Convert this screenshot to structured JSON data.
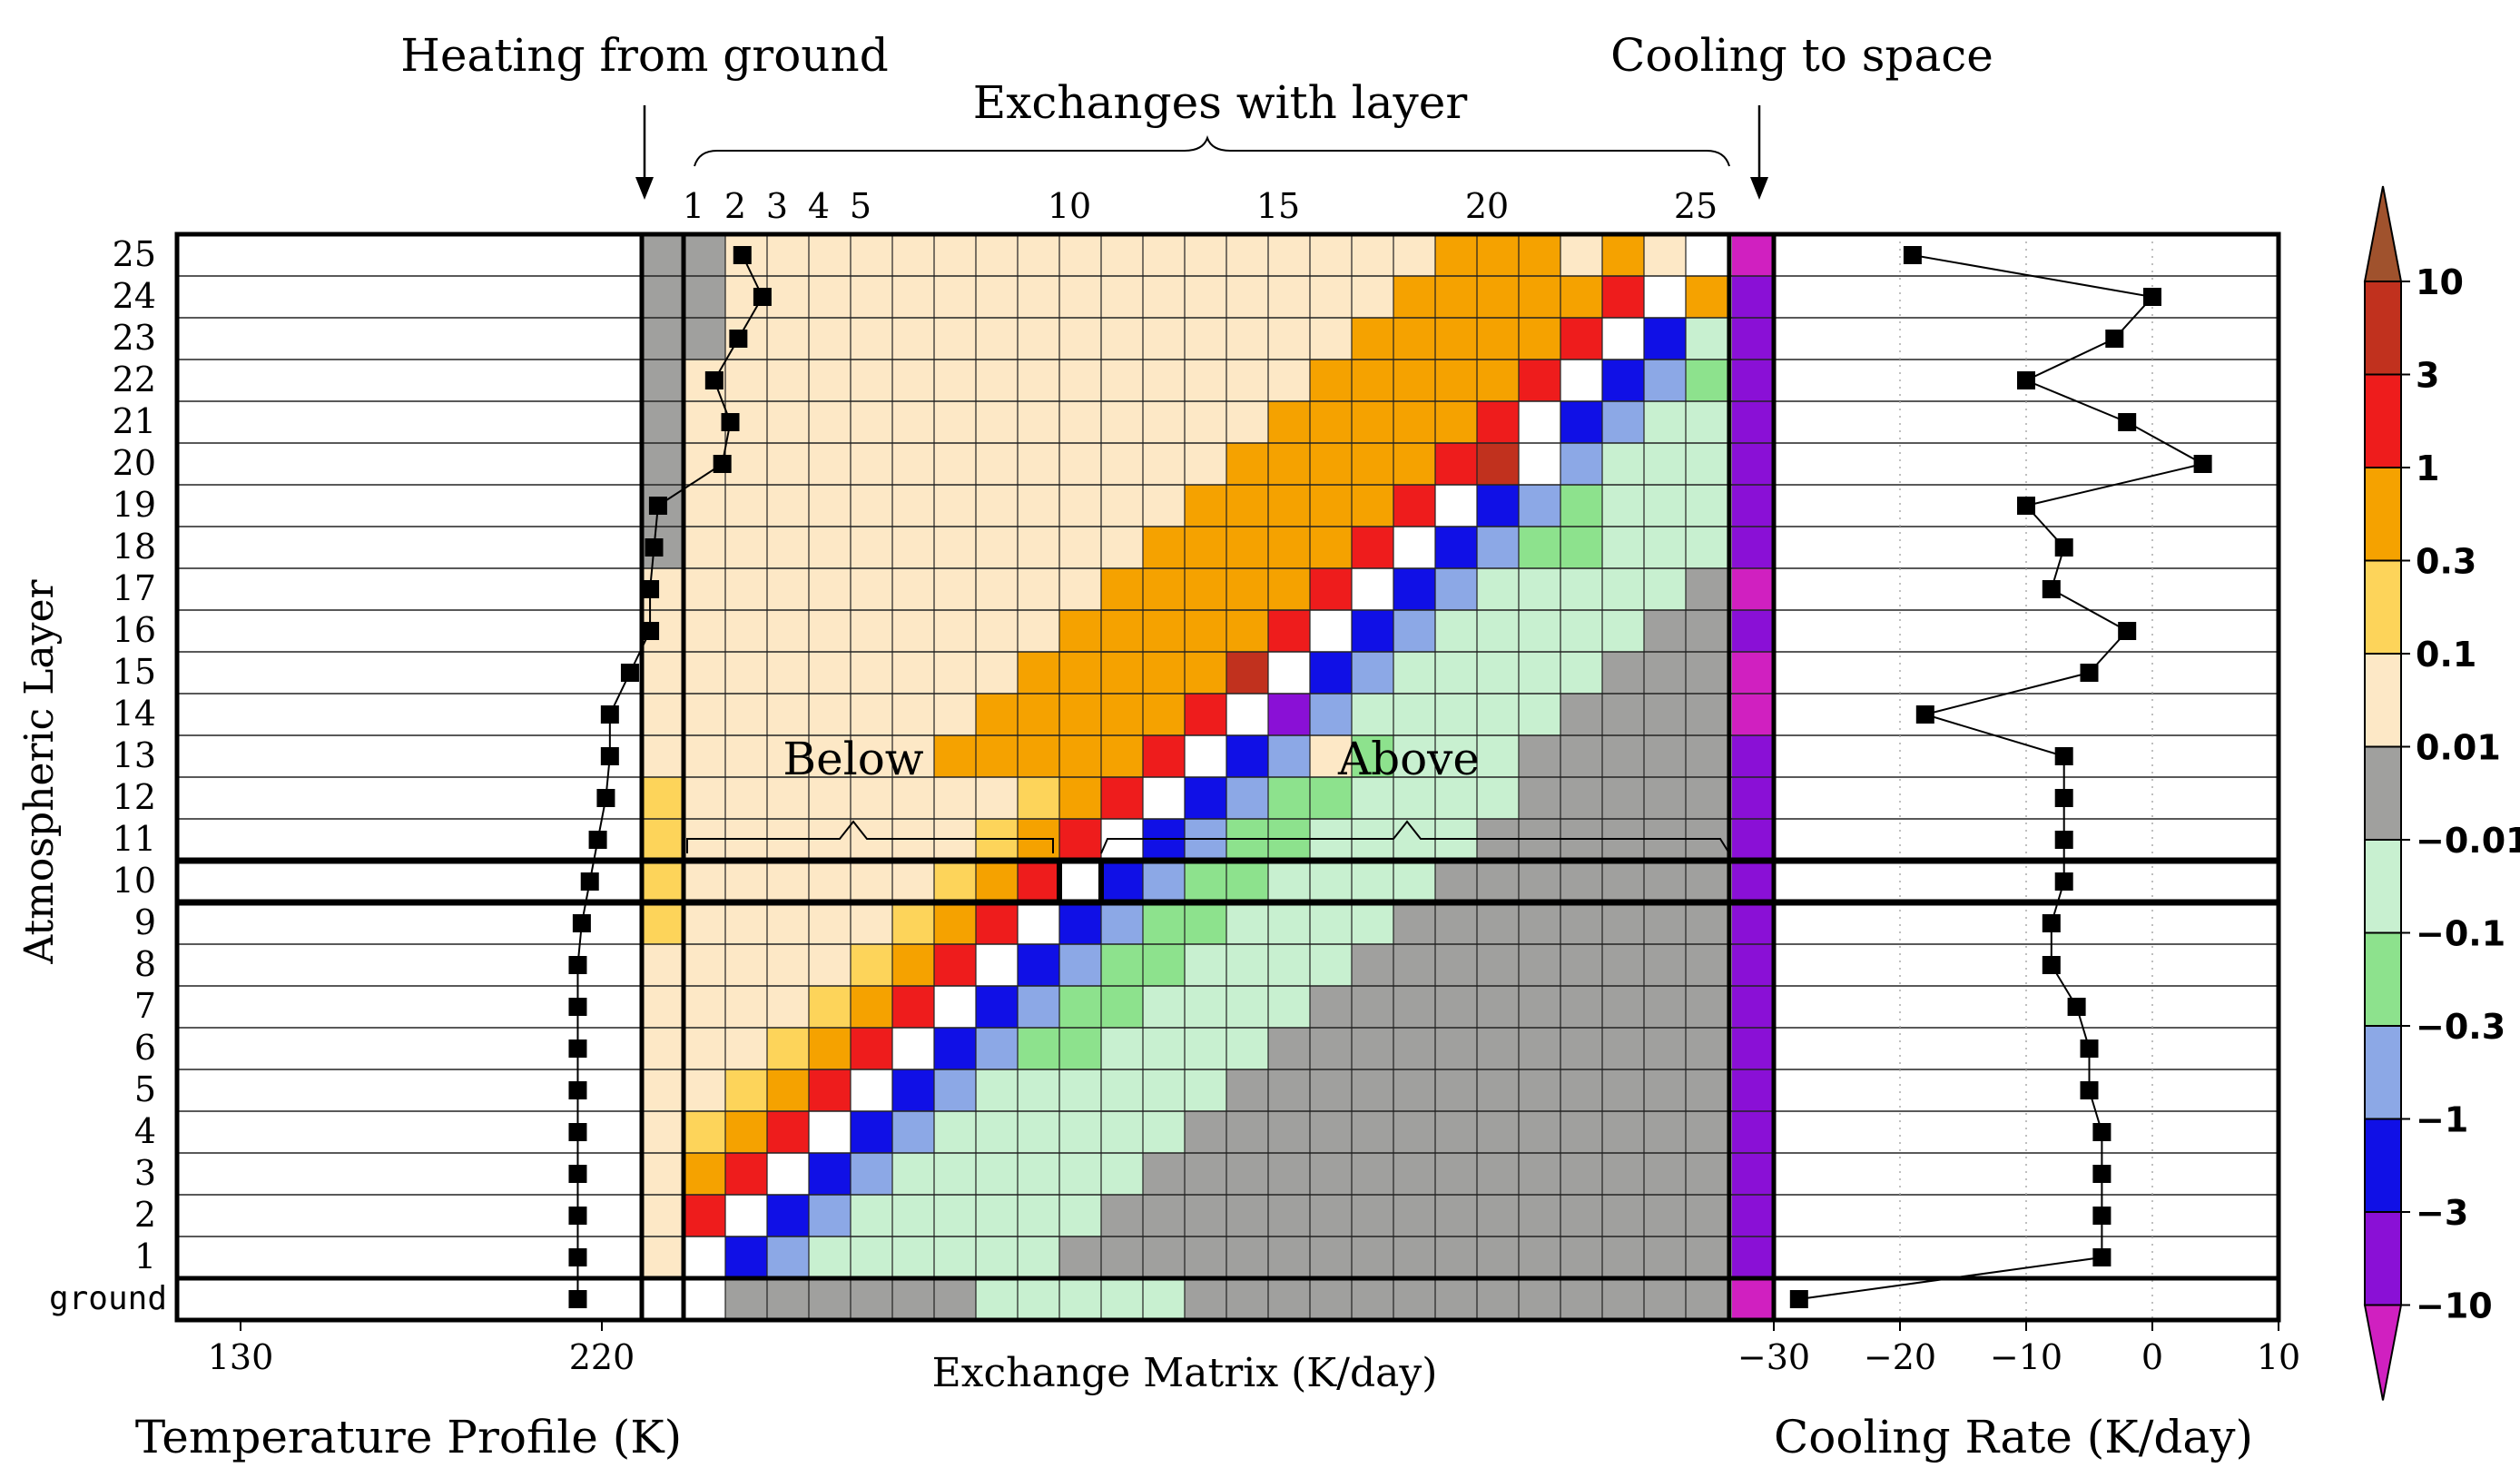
{
  "chart_data": {
    "type": "heatmap",
    "layers": [
      "1",
      "2",
      "3",
      "4",
      "5",
      "6",
      "7",
      "8",
      "9",
      "10",
      "11",
      "12",
      "13",
      "14",
      "15",
      "16",
      "17",
      "18",
      "19",
      "20",
      "21",
      "22",
      "23",
      "24",
      "25"
    ],
    "ground_label": "ground",
    "y_axis_label": "Atmospheric Layer",
    "annotations": {
      "heating_from_ground": "Heating from ground",
      "exchanges_with_layer": "Exchanges with layer",
      "cooling_to_space": "Cooling to space",
      "below": "Below",
      "above": "Above"
    },
    "exchange_matrix": {
      "xlabel": "Exchange Matrix (K/day)",
      "top_ticks": [
        "1",
        "2",
        "3",
        "4",
        "5",
        "10",
        "15",
        "20",
        "25"
      ],
      "top_tick_layers": [
        1,
        2,
        3,
        4,
        5,
        10,
        15,
        20,
        25
      ],
      "rows_from_layer_1_to_25": [
        "abbbbbbbbbbbccccdddddddddd",
        "abbbbbbbbbbbccccdddddddddd",
        "abbbbbbbbbbbccccdddddddddd",
        "abbbbbbbbbbbbcccdddddddddd",
        "abbbbbbbbbbbbbccdddddddddd",
        "abbbbbbbbbbbbbbbdddddddddd",
        "abbbbbbbbbbbbbbbbddddddddd",
        "abbbbbbbbbbbbbbbbbdddddddd",
        "abbbbbbbbbbbbbbbbbbddddddd",
        "abbbbbbbbbbbbbbbbbbbdddddd",
        "abbbbbbbbbbbbbbbbbbbbddddd",
        "abbbbbbbbbbbbbbbbbbbbbdddd",
        "abbbbbbbbbbbbbbbbbbbbbbddd",
        "abbbbbbbbbbbbbbbbbbbbbbbdd",
        "abbbbbbbbbbbbbbbbbbbbbbbbd",
        "abbbbbbbbbbbbbbbbbbbbbbbbb",
        "abbbbbbbbbbbbbbbbbbbbbbbbb",
        "abbbbbbbbbbbbbbbbbbbbbbbbb",
        "abbbbbbbbbbbbbbbbbbbbbbbbb",
        "abbbbbbbbbbbbbbbbbbbbbbbbb",
        "abbbbbbbbbbbbbbbbbbbbbbbbb",
        "abbbbbbbbbbbbbbbbbbbbbbbbb",
        "abbbbbbbbbbbbbbbbbbbbbbbbb",
        "abbbbbbbbbbbbbbbbbbbbbbbbb",
        "abbbbbbbbbbbbbbbbbbbbbbbbb"
      ],
      "ground_row": "cccccccccccccccccccccccccc",
      "cooling_to_space_column_from_layer_1_to_25": "ccccccccccccckkkcccccccccc"
    },
    "matrix_cells_layer_row_column": [
      [
        1,
        0,
        "c"
      ],
      [
        1,
        1,
        "e"
      ],
      [
        1,
        2,
        "c"
      ],
      [
        1,
        3,
        "c"
      ],
      [
        1,
        4,
        "c"
      ],
      [
        1,
        5,
        "c"
      ],
      [
        1,
        6,
        "c"
      ],
      [
        1,
        7,
        "c"
      ],
      [
        1,
        8,
        "c"
      ],
      [
        1,
        9,
        "c"
      ],
      [
        1,
        10,
        "c"
      ],
      [
        1,
        11,
        "c"
      ],
      [
        1,
        12,
        "c"
      ],
      [
        1,
        13,
        "c"
      ],
      [
        1,
        14,
        "d"
      ],
      [
        1,
        15,
        "d"
      ],
      [
        1,
        16,
        "d"
      ],
      [
        1,
        17,
        "d"
      ],
      [
        1,
        18,
        "d"
      ],
      [
        1,
        19,
        "d"
      ],
      [
        1,
        20,
        "d"
      ],
      [
        1,
        21,
        "d"
      ],
      [
        1,
        22,
        "d"
      ],
      [
        1,
        23,
        "d"
      ],
      [
        1,
        24,
        "d"
      ],
      [
        2,
        0,
        "e"
      ],
      [
        2,
        1,
        "f"
      ],
      [
        2,
        2,
        "c"
      ],
      [
        2,
        3,
        "c"
      ],
      [
        2,
        4,
        "c"
      ],
      [
        2,
        5,
        "c"
      ],
      [
        2,
        6,
        "c"
      ],
      [
        2,
        7,
        "c"
      ],
      [
        2,
        8,
        "c"
      ],
      [
        2,
        9,
        "c"
      ],
      [
        2,
        10,
        "c"
      ],
      [
        2,
        11,
        "c"
      ],
      [
        2,
        12,
        "c"
      ],
      [
        2,
        13,
        "c"
      ],
      [
        2,
        14,
        "d"
      ],
      [
        2,
        15,
        "d"
      ],
      [
        2,
        16,
        "d"
      ],
      [
        2,
        17,
        "d"
      ],
      [
        2,
        18,
        "d"
      ],
      [
        2,
        19,
        "d"
      ],
      [
        2,
        20,
        "d"
      ],
      [
        2,
        21,
        "d"
      ],
      [
        2,
        22,
        "d"
      ],
      [
        2,
        23,
        "d"
      ],
      [
        2,
        24,
        "d"
      ],
      [
        3,
        0,
        "d"
      ],
      [
        3,
        1,
        "e"
      ],
      [
        3,
        2,
        "f"
      ],
      [
        3,
        3,
        "c"
      ],
      [
        3,
        4,
        "c"
      ],
      [
        3,
        5,
        "c"
      ],
      [
        3,
        6,
        "c"
      ],
      [
        3,
        7,
        "c"
      ],
      [
        3,
        8,
        "c"
      ],
      [
        3,
        9,
        "c"
      ],
      [
        3,
        10,
        "c"
      ],
      [
        3,
        11,
        "c"
      ],
      [
        3,
        12,
        "c"
      ],
      [
        3,
        13,
        "c"
      ],
      [
        3,
        14,
        "d"
      ],
      [
        3,
        15,
        "d"
      ],
      [
        3,
        16,
        "d"
      ],
      [
        3,
        17,
        "d"
      ],
      [
        3,
        18,
        "d"
      ],
      [
        3,
        19,
        "d"
      ],
      [
        3,
        20,
        "d"
      ],
      [
        3,
        21,
        "d"
      ],
      [
        3,
        22,
        "d"
      ],
      [
        3,
        23,
        "d"
      ],
      [
        3,
        24,
        "d"
      ],
      [
        4,
        0,
        "d"
      ],
      [
        4,
        1,
        "e"
      ],
      [
        4,
        2,
        "e"
      ],
      [
        4,
        3,
        "f"
      ],
      [
        4,
        4,
        "c"
      ],
      [
        4,
        5,
        "c"
      ],
      [
        4,
        6,
        "c"
      ],
      [
        4,
        7,
        "c"
      ],
      [
        4,
        8,
        "c"
      ],
      [
        4,
        9,
        "c"
      ],
      [
        4,
        10,
        "c"
      ],
      [
        4,
        11,
        "c"
      ],
      [
        4,
        12,
        "c"
      ],
      [
        4,
        13,
        "c"
      ],
      [
        4,
        14,
        "d"
      ],
      [
        4,
        15,
        "d"
      ],
      [
        4,
        16,
        "d"
      ],
      [
        4,
        17,
        "d"
      ],
      [
        4,
        18,
        "d"
      ],
      [
        4,
        19,
        "d"
      ],
      [
        4,
        20,
        "d"
      ],
      [
        4,
        21,
        "d"
      ],
      [
        4,
        22,
        "d"
      ],
      [
        4,
        23,
        "d"
      ],
      [
        4,
        24,
        "d"
      ],
      [
        5,
        0,
        "d"
      ],
      [
        5,
        1,
        "d"
      ],
      [
        5,
        2,
        "e"
      ],
      [
        5,
        3,
        "e"
      ],
      [
        5,
        4,
        "f"
      ],
      [
        5,
        5,
        "c"
      ],
      [
        5,
        6,
        "c"
      ],
      [
        5,
        7,
        "c"
      ],
      [
        5,
        8,
        "c"
      ],
      [
        5,
        9,
        "c"
      ],
      [
        5,
        10,
        "c"
      ],
      [
        5,
        11,
        "c"
      ],
      [
        5,
        12,
        "c"
      ],
      [
        5,
        13,
        "c"
      ],
      [
        5,
        14,
        "d"
      ],
      [
        5,
        15,
        "d"
      ],
      [
        5,
        16,
        "d"
      ],
      [
        5,
        17,
        "d"
      ],
      [
        5,
        18,
        "d"
      ],
      [
        5,
        19,
        "d"
      ],
      [
        5,
        20,
        "d"
      ],
      [
        5,
        21,
        "d"
      ],
      [
        5,
        22,
        "d"
      ],
      [
        5,
        23,
        "d"
      ],
      [
        5,
        24,
        "d"
      ],
      [
        6,
        0,
        "d"
      ],
      [
        6,
        1,
        "d"
      ],
      [
        6,
        2,
        "d"
      ],
      [
        6,
        3,
        "e"
      ],
      [
        6,
        4,
        "e"
      ],
      [
        6,
        5,
        "f"
      ],
      [
        6,
        6,
        "c"
      ],
      [
        6,
        7,
        "c"
      ],
      [
        6,
        8,
        "g"
      ],
      [
        6,
        9,
        "g"
      ],
      [
        6,
        10,
        "c"
      ],
      [
        6,
        11,
        "c"
      ],
      [
        6,
        12,
        "c"
      ],
      [
        6,
        13,
        "c"
      ],
      [
        6,
        14,
        "c"
      ],
      [
        6,
        15,
        "d"
      ],
      [
        6,
        16,
        "d"
      ],
      [
        6,
        17,
        "d"
      ],
      [
        6,
        18,
        "d"
      ],
      [
        6,
        19,
        "d"
      ],
      [
        6,
        20,
        "d"
      ],
      [
        6,
        21,
        "d"
      ],
      [
        6,
        22,
        "d"
      ],
      [
        6,
        23,
        "d"
      ],
      [
        6,
        24,
        "d"
      ],
      [
        7,
        0,
        "d"
      ],
      [
        7,
        1,
        "d"
      ],
      [
        7,
        2,
        "d"
      ],
      [
        7,
        3,
        "d"
      ],
      [
        7,
        4,
        "e"
      ],
      [
        7,
        5,
        "e"
      ],
      [
        7,
        6,
        "f"
      ],
      [
        7,
        7,
        "g"
      ],
      [
        7,
        8,
        "g"
      ],
      [
        7,
        9,
        "g"
      ],
      [
        7,
        10,
        "c"
      ],
      [
        7,
        11,
        "c"
      ],
      [
        7,
        12,
        "c"
      ],
      [
        7,
        13,
        "c"
      ],
      [
        7,
        14,
        "c"
      ],
      [
        7,
        15,
        "d"
      ],
      [
        7,
        16,
        "d"
      ],
      [
        7,
        17,
        "d"
      ],
      [
        7,
        18,
        "d"
      ],
      [
        7,
        19,
        "d"
      ],
      [
        7,
        20,
        "d"
      ],
      [
        7,
        21,
        "d"
      ],
      [
        7,
        22,
        "d"
      ],
      [
        7,
        23,
        "d"
      ],
      [
        7,
        24,
        "d"
      ],
      [
        8,
        0,
        "d"
      ],
      [
        8,
        1,
        "d"
      ],
      [
        8,
        2,
        "d"
      ],
      [
        8,
        3,
        "e"
      ],
      [
        8,
        4,
        "e"
      ],
      [
        8,
        5,
        "e"
      ],
      [
        8,
        6,
        "h"
      ],
      [
        8,
        7,
        "f"
      ],
      [
        8,
        8,
        "i"
      ],
      [
        8,
        9,
        "j"
      ],
      [
        8,
        10,
        "g"
      ],
      [
        8,
        11,
        "g"
      ],
      [
        8,
        12,
        "c"
      ],
      [
        8,
        13,
        "c"
      ],
      [
        8,
        14,
        "c"
      ],
      [
        8,
        15,
        "c"
      ],
      [
        8,
        16,
        "d"
      ],
      [
        8,
        17,
        "d"
      ],
      [
        8,
        18,
        "d"
      ],
      [
        8,
        19,
        "d"
      ],
      [
        8,
        20,
        "d"
      ],
      [
        8,
        21,
        "d"
      ],
      [
        8,
        22,
        "d"
      ],
      [
        8,
        23,
        "d"
      ],
      [
        8,
        24,
        "d"
      ],
      [
        9,
        0,
        "d"
      ],
      [
        9,
        1,
        "d"
      ],
      [
        9,
        2,
        "e"
      ],
      [
        9,
        3,
        "e"
      ],
      [
        9,
        4,
        "e"
      ],
      [
        9,
        5,
        "e"
      ],
      [
        9,
        6,
        "e"
      ],
      [
        9,
        7,
        "l"
      ],
      [
        9,
        8,
        "f"
      ],
      [
        9,
        9,
        "i"
      ],
      [
        9,
        10,
        "j"
      ],
      [
        9,
        11,
        "g"
      ],
      [
        9,
        12,
        "g"
      ],
      [
        9,
        13,
        "c"
      ],
      [
        9,
        14,
        "c"
      ],
      [
        9,
        15,
        "c"
      ],
      [
        9,
        16,
        "d"
      ],
      [
        9,
        17,
        "d"
      ],
      [
        9,
        18,
        "d"
      ],
      [
        9,
        19,
        "d"
      ],
      [
        9,
        20,
        "d"
      ],
      [
        9,
        21,
        "d"
      ],
      [
        9,
        22,
        "d"
      ],
      [
        9,
        23,
        "d"
      ],
      [
        9,
        24,
        "d"
      ],
      [
        10,
        0,
        "d"
      ],
      [
        10,
        1,
        "d"
      ],
      [
        10,
        2,
        "e"
      ],
      [
        10,
        3,
        "e"
      ],
      [
        10,
        4,
        "e"
      ],
      [
        10,
        5,
        "e"
      ],
      [
        10,
        6,
        "e"
      ],
      [
        10,
        7,
        "h"
      ],
      [
        10,
        8,
        "l"
      ],
      [
        10,
        9,
        "f"
      ],
      [
        10,
        10,
        "i"
      ],
      [
        10,
        11,
        "j"
      ],
      [
        10,
        12,
        "g"
      ],
      [
        10,
        13,
        "c"
      ],
      [
        10,
        14,
        "c"
      ],
      [
        10,
        15,
        "c"
      ],
      [
        10,
        16,
        "d"
      ],
      [
        10,
        17,
        "d"
      ],
      [
        10,
        18,
        "d"
      ],
      [
        10,
        19,
        "d"
      ],
      [
        10,
        20,
        "d"
      ],
      [
        10,
        21,
        "d"
      ],
      [
        10,
        22,
        "d"
      ],
      [
        10,
        23,
        "d"
      ],
      [
        10,
        24,
        "d"
      ],
      [
        11,
        0,
        "d"
      ],
      [
        11,
        1,
        "d"
      ],
      [
        11,
        2,
        "e"
      ],
      [
        11,
        3,
        "e"
      ],
      [
        11,
        4,
        "e"
      ],
      [
        11,
        5,
        "e"
      ],
      [
        11,
        6,
        "e"
      ],
      [
        11,
        7,
        "h"
      ],
      [
        11,
        8,
        "k"
      ],
      [
        11,
        9,
        "l"
      ],
      [
        11,
        10,
        "f"
      ],
      [
        11,
        11,
        "i"
      ],
      [
        11,
        12,
        "j"
      ],
      [
        11,
        13,
        "g"
      ],
      [
        11,
        14,
        "c"
      ],
      [
        11,
        15,
        "c"
      ],
      [
        11,
        16,
        "c"
      ],
      [
        11,
        17,
        "d"
      ],
      [
        11,
        18,
        "d"
      ],
      [
        11,
        19,
        "d"
      ],
      [
        11,
        20,
        "d"
      ],
      [
        11,
        21,
        "d"
      ],
      [
        11,
        22,
        "d"
      ],
      [
        11,
        23,
        "d"
      ],
      [
        11,
        24,
        "d"
      ]
    ]
  },
  "legend": {
    "labels": [
      "10",
      "3",
      "1",
      "0.3",
      "0.1",
      "0.01",
      "−0.01",
      "−0.1",
      "−0.3",
      "−1",
      "−3",
      "−10"
    ],
    "colors": [
      "#a0522d",
      "#c1311e",
      "#ee1c1c",
      "#f5a200",
      "#fdd45a",
      "#fde8c6",
      "#a0a09e",
      "#c8f0d0",
      "#8de28d",
      "#8ca8e6",
      "#1010e6",
      "#8a10d6",
      "#d020c0"
    ]
  },
  "temperature_profile": {
    "xlabel": "Temperature Profile (K)",
    "ticks": [
      "130",
      "220"
    ],
    "tick_values": [
      130,
      220
    ],
    "points_layer_and_value": [
      [
        "ground",
        214
      ],
      [
        1,
        214
      ],
      [
        2,
        214
      ],
      [
        3,
        214
      ],
      [
        4,
        214
      ],
      [
        5,
        214
      ],
      [
        6,
        214
      ],
      [
        7,
        214
      ],
      [
        8,
        214
      ],
      [
        9,
        215
      ],
      [
        10,
        217
      ],
      [
        11,
        219
      ],
      [
        12,
        221
      ],
      [
        13,
        222
      ],
      [
        14,
        222
      ],
      [
        15,
        227
      ],
      [
        16,
        232
      ],
      [
        17,
        232
      ],
      [
        18,
        233
      ],
      [
        19,
        234
      ],
      [
        20,
        250
      ],
      [
        21,
        252
      ],
      [
        22,
        248
      ],
      [
        23,
        254
      ],
      [
        24,
        260
      ],
      [
        25,
        255
      ]
    ]
  },
  "cooling_rate": {
    "xlabel": "Cooling Rate (K/day)",
    "ticks": [
      "−30",
      "−20",
      "−10",
      "0",
      "10"
    ],
    "tick_values": [
      -30,
      -20,
      -10,
      0,
      10
    ],
    "points_layer_and_value": [
      [
        "ground",
        -28
      ],
      [
        1,
        -4
      ],
      [
        2,
        -4
      ],
      [
        3,
        -4
      ],
      [
        4,
        -4
      ],
      [
        5,
        -5
      ],
      [
        6,
        -5
      ],
      [
        7,
        -6
      ],
      [
        8,
        -8
      ],
      [
        9,
        -8
      ],
      [
        10,
        -7
      ],
      [
        11,
        -7
      ],
      [
        12,
        -7
      ],
      [
        13,
        -7
      ],
      [
        14,
        -18
      ],
      [
        15,
        -5
      ],
      [
        16,
        -2
      ],
      [
        17,
        -8
      ],
      [
        18,
        -7
      ],
      [
        19,
        -10
      ],
      [
        20,
        4
      ],
      [
        21,
        -2
      ],
      [
        22,
        -10
      ],
      [
        23,
        -3
      ],
      [
        24,
        0
      ],
      [
        25,
        -19
      ]
    ]
  }
}
